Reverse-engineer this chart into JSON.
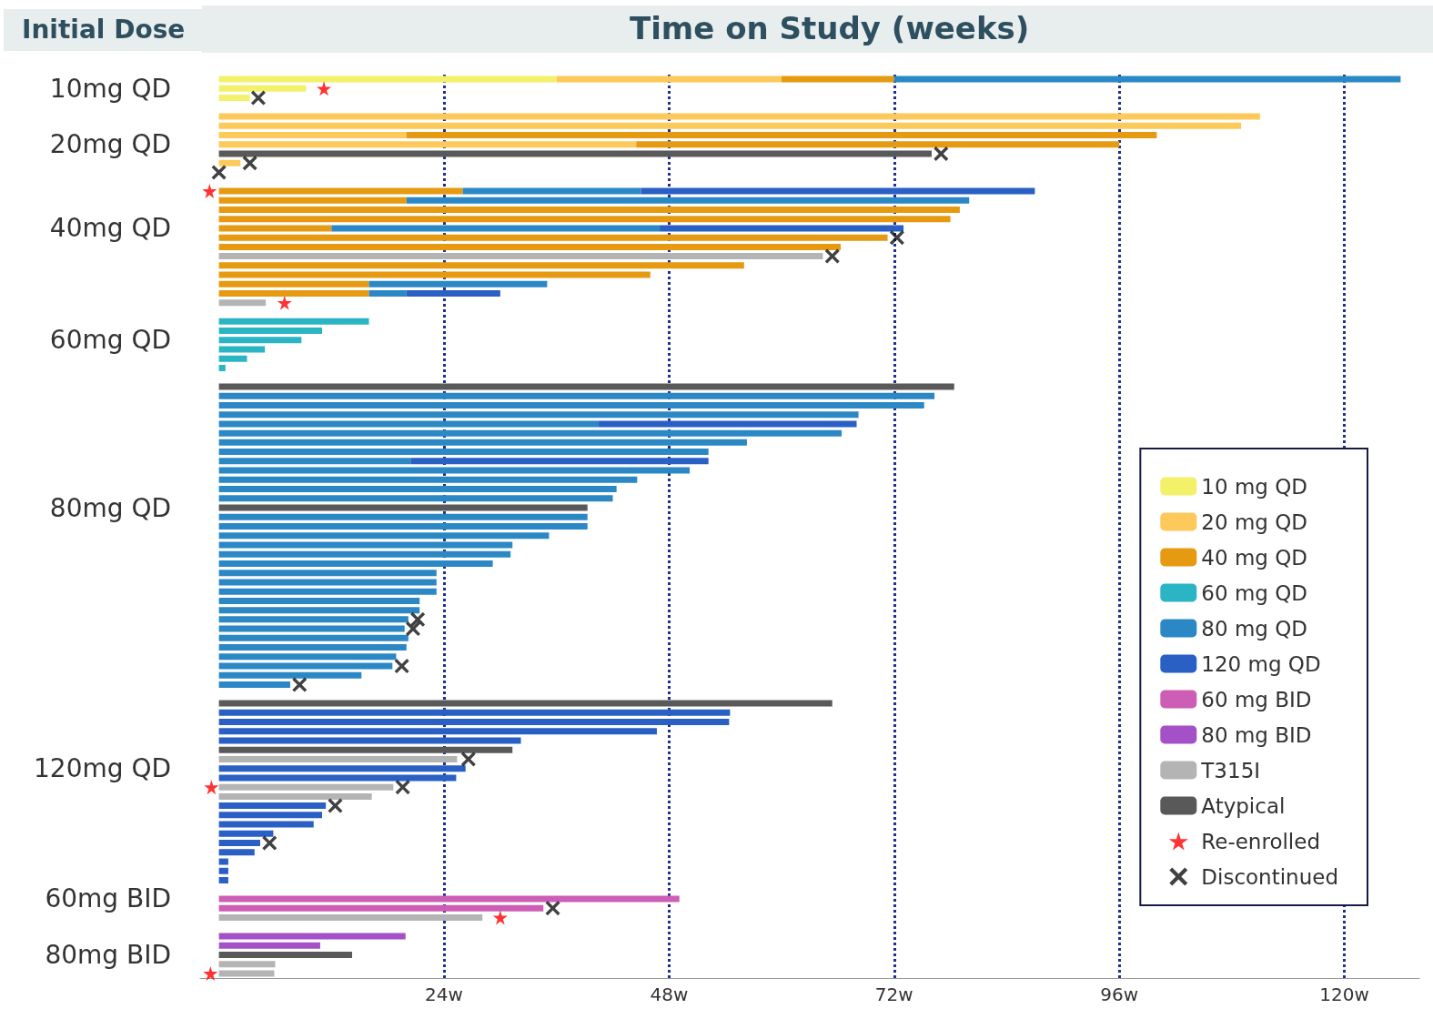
{
  "chart_data": {
    "type": "bar",
    "orientation": "horizontal",
    "stacked": true,
    "title": "Time on Study (weeks)",
    "ylabel": "Initial Dose",
    "grid": "x",
    "legend": "bottom right",
    "xlim": [
      -2,
      128
    ],
    "xticks": [
      {
        "value": 24,
        "label": "24w"
      },
      {
        "value": 48,
        "label": "48w"
      },
      {
        "value": 72,
        "label": "72w"
      },
      {
        "value": 96,
        "label": "96w"
      },
      {
        "value": 120,
        "label": "120w"
      }
    ],
    "categories": [
      null,
      "10mg QD",
      null,
      null,
      null,
      null,
      null,
      "20mg QD",
      null,
      null,
      null,
      null,
      null,
      null,
      null,
      null,
      "40mg QD",
      null,
      null,
      null,
      null,
      null,
      null,
      null,
      null,
      null,
      null,
      null,
      "60mg QD",
      null,
      null,
      null,
      null,
      null,
      null,
      null,
      null,
      null,
      null,
      null,
      null,
      null,
      null,
      null,
      null,
      null,
      "80mg QD",
      null,
      null,
      null,
      null,
      null,
      null,
      null,
      null,
      null,
      null,
      null,
      null,
      null,
      null,
      null,
      null,
      null,
      null,
      null,
      null,
      null,
      null,
      null,
      null,
      null,
      null,
      null,
      "120mg QD",
      null,
      null,
      null,
      null,
      null,
      null,
      null,
      null,
      null,
      null,
      null,
      null,
      null,
      "60mg BID",
      null,
      null,
      null,
      null,
      null,
      "80mg BID",
      null,
      null
    ],
    "series": [
      {
        "name": "10 mg QD",
        "color": "#f3f06a",
        "values": [
          36,
          9.3,
          3.3,
          null,
          null,
          null,
          null,
          null,
          null,
          null,
          null,
          null,
          null,
          null,
          null,
          null,
          null,
          null,
          null,
          null,
          null,
          null,
          null,
          null,
          null,
          null,
          null,
          null,
          null,
          null,
          null,
          null,
          null,
          null,
          null,
          null,
          null,
          null,
          null,
          null,
          null,
          null,
          null,
          null,
          null,
          null,
          null,
          null,
          null,
          null,
          null,
          null,
          null,
          null,
          null,
          null,
          null,
          null,
          null,
          null,
          null,
          null,
          null,
          null,
          null,
          null,
          null,
          null,
          null,
          null,
          null,
          null,
          null,
          null,
          null,
          null,
          null,
          null,
          null,
          null,
          null,
          null,
          null,
          null,
          null,
          null,
          null,
          null,
          null,
          null,
          null,
          null,
          null,
          null,
          null,
          null,
          null
        ]
      },
      {
        "name": "20 mg QD",
        "color": "#fdc95a",
        "values": [
          24,
          null,
          null,
          null,
          111,
          109,
          20,
          44.5,
          null,
          2.3,
          null,
          null,
          null,
          null,
          null,
          null,
          null,
          null,
          null,
          null,
          null,
          null,
          null,
          null,
          null,
          null,
          null,
          null,
          null,
          null,
          null,
          null,
          null,
          null,
          null,
          null,
          null,
          null,
          null,
          null,
          null,
          null,
          null,
          null,
          null,
          null,
          null,
          null,
          null,
          null,
          null,
          null,
          null,
          null,
          null,
          null,
          null,
          null,
          null,
          null,
          null,
          null,
          null,
          null,
          null,
          null,
          null,
          null,
          null,
          null,
          null,
          null,
          null,
          null,
          null,
          null,
          null,
          null,
          null,
          null,
          null,
          null,
          null,
          null,
          null,
          null,
          null,
          null,
          null,
          null,
          null,
          null,
          null,
          null,
          null,
          null,
          null
        ]
      },
      {
        "name": "40 mg QD",
        "color": "#e59a12",
        "values": [
          12,
          null,
          null,
          null,
          null,
          null,
          80,
          51.5,
          null,
          null,
          null,
          null,
          26,
          20,
          79,
          78,
          12,
          71.3,
          66.3,
          null,
          56,
          46,
          16,
          16,
          null,
          null,
          null,
          null,
          null,
          null,
          null,
          null,
          null,
          null,
          null,
          null,
          null,
          null,
          null,
          null,
          null,
          null,
          null,
          null,
          null,
          null,
          null,
          null,
          null,
          null,
          null,
          null,
          null,
          null,
          null,
          null,
          null,
          null,
          null,
          null,
          null,
          null,
          null,
          null,
          null,
          null,
          null,
          null,
          null,
          null,
          null,
          null,
          null,
          null,
          null,
          null,
          null,
          null,
          null,
          null,
          null,
          null,
          null,
          null,
          null,
          null,
          null,
          null,
          null,
          null,
          null,
          null,
          null,
          null,
          null,
          null,
          null
        ]
      },
      {
        "name": "60 mg QD",
        "color": "#2bb5c4",
        "values": [
          null,
          null,
          null,
          null,
          null,
          null,
          null,
          null,
          null,
          null,
          null,
          null,
          null,
          null,
          null,
          null,
          null,
          null,
          null,
          null,
          null,
          null,
          null,
          null,
          null,
          null,
          16,
          11,
          8.8,
          4.9,
          3,
          0.7,
          null,
          null,
          null,
          null,
          null,
          null,
          null,
          null,
          null,
          null,
          null,
          null,
          null,
          null,
          null,
          null,
          null,
          null,
          null,
          null,
          null,
          null,
          null,
          null,
          null,
          null,
          null,
          null,
          null,
          null,
          null,
          null,
          null,
          null,
          null,
          null,
          null,
          null,
          null,
          null,
          null,
          null,
          null,
          null,
          null,
          null,
          null,
          null,
          null,
          null,
          null,
          null,
          null,
          null,
          null,
          null,
          null,
          null,
          null,
          null,
          null,
          null,
          null,
          null,
          null
        ]
      },
      {
        "name": "80 mg QD",
        "color": "#2b88c4",
        "values": [
          54,
          null,
          null,
          null,
          null,
          null,
          null,
          null,
          null,
          null,
          null,
          null,
          19,
          60,
          null,
          null,
          35,
          null,
          null,
          null,
          null,
          null,
          19,
          4,
          null,
          null,
          null,
          null,
          null,
          null,
          null,
          null,
          null,
          null,
          76.3,
          75.2,
          68.2,
          40.5,
          66.4,
          56.3,
          52.2,
          20.5,
          50.2,
          44.6,
          42.4,
          42,
          null,
          39.3,
          39.3,
          35.2,
          31.3,
          31.1,
          29.2,
          23.2,
          23.2,
          23.2,
          21.4,
          21.4,
          20.2,
          19.8,
          20.2,
          20,
          18.9,
          18.5,
          15.2,
          7.6,
          null,
          null,
          null,
          null,
          null,
          null,
          null,
          null,
          null,
          null,
          null,
          null,
          null,
          null,
          null,
          null,
          null,
          null,
          null,
          null,
          null,
          null,
          null,
          null,
          null,
          null,
          null,
          null,
          null,
          null,
          null
        ]
      },
      {
        "name": "120 mg QD",
        "color": "#2a5fc4",
        "values": [
          null,
          null,
          null,
          null,
          null,
          null,
          null,
          null,
          null,
          null,
          null,
          null,
          42,
          null,
          null,
          null,
          26,
          null,
          null,
          null,
          null,
          null,
          null,
          10,
          null,
          null,
          null,
          null,
          null,
          null,
          null,
          null,
          null,
          null,
          null,
          null,
          null,
          27.5,
          null,
          null,
          null,
          31.7,
          null,
          null,
          null,
          null,
          null,
          null,
          null,
          null,
          null,
          null,
          null,
          null,
          null,
          null,
          null,
          null,
          null,
          null,
          null,
          null,
          null,
          null,
          null,
          null,
          null,
          null,
          54.5,
          54.4,
          46.7,
          32.2,
          null,
          null,
          26.3,
          25.3,
          null,
          null,
          11.4,
          11,
          10.1,
          5.8,
          4.4,
          3.8,
          1,
          1,
          1,
          null,
          null,
          null,
          null,
          null,
          null,
          null,
          null,
          null,
          null
        ]
      },
      {
        "name": "60 mg BID",
        "color": "#cc5eb5",
        "values": [
          null,
          null,
          null,
          null,
          null,
          null,
          null,
          null,
          null,
          null,
          null,
          null,
          null,
          null,
          null,
          null,
          null,
          null,
          null,
          null,
          null,
          null,
          null,
          null,
          null,
          null,
          null,
          null,
          null,
          null,
          null,
          null,
          null,
          null,
          null,
          null,
          null,
          null,
          null,
          null,
          null,
          null,
          null,
          null,
          null,
          null,
          null,
          null,
          null,
          null,
          null,
          null,
          null,
          null,
          null,
          null,
          null,
          null,
          null,
          null,
          null,
          null,
          null,
          null,
          null,
          null,
          null,
          null,
          null,
          null,
          null,
          null,
          null,
          null,
          null,
          null,
          null,
          null,
          null,
          null,
          null,
          null,
          null,
          null,
          null,
          null,
          null,
          null,
          49.1,
          34.6,
          null,
          null,
          null,
          null,
          null,
          null,
          null
        ]
      },
      {
        "name": "80 mg BID",
        "color": "#a451c8",
        "values": [
          null,
          null,
          null,
          null,
          null,
          null,
          null,
          null,
          null,
          null,
          null,
          null,
          null,
          null,
          null,
          null,
          null,
          null,
          null,
          null,
          null,
          null,
          null,
          null,
          null,
          null,
          null,
          null,
          null,
          null,
          null,
          null,
          null,
          null,
          null,
          null,
          null,
          null,
          null,
          null,
          null,
          null,
          null,
          null,
          null,
          null,
          null,
          null,
          null,
          null,
          null,
          null,
          null,
          null,
          null,
          null,
          null,
          null,
          null,
          null,
          null,
          null,
          null,
          null,
          null,
          null,
          null,
          null,
          null,
          null,
          null,
          null,
          null,
          null,
          null,
          null,
          null,
          null,
          null,
          null,
          null,
          null,
          null,
          null,
          null,
          null,
          null,
          null,
          null,
          null,
          null,
          null,
          19.9,
          10.8,
          null,
          null,
          null
        ]
      },
      {
        "name": "T315I",
        "color": "#b4b4b4",
        "values": [
          null,
          null,
          null,
          null,
          null,
          null,
          null,
          null,
          null,
          null,
          null,
          null,
          null,
          null,
          null,
          null,
          null,
          null,
          null,
          64.4,
          null,
          null,
          null,
          null,
          5,
          null,
          null,
          null,
          null,
          null,
          null,
          null,
          null,
          null,
          null,
          null,
          null,
          null,
          null,
          null,
          null,
          null,
          null,
          null,
          null,
          null,
          null,
          null,
          null,
          null,
          null,
          null,
          null,
          null,
          null,
          null,
          null,
          null,
          null,
          null,
          null,
          null,
          null,
          null,
          null,
          null,
          null,
          null,
          null,
          null,
          null,
          null,
          null,
          25.4,
          null,
          null,
          18.6,
          16.3,
          null,
          null,
          null,
          null,
          null,
          null,
          null,
          null,
          null,
          null,
          null,
          null,
          28.1,
          null,
          null,
          null,
          null,
          6,
          5.9
        ]
      },
      {
        "name": "Atypical",
        "color": "#595959",
        "values": [
          null,
          null,
          null,
          null,
          null,
          null,
          null,
          null,
          76,
          null,
          null,
          null,
          null,
          null,
          null,
          null,
          null,
          null,
          null,
          null,
          null,
          null,
          null,
          null,
          null,
          null,
          null,
          null,
          null,
          null,
          null,
          null,
          null,
          78.4,
          null,
          null,
          null,
          null,
          null,
          null,
          null,
          null,
          null,
          null,
          null,
          null,
          39.3,
          null,
          null,
          null,
          null,
          null,
          null,
          null,
          null,
          null,
          null,
          null,
          null,
          null,
          null,
          null,
          null,
          null,
          null,
          null,
          null,
          65.4,
          null,
          null,
          null,
          null,
          31.3,
          null,
          null,
          null,
          null,
          null,
          null,
          null,
          null,
          null,
          null,
          null,
          null,
          null,
          null,
          null,
          null,
          null,
          null,
          null,
          null,
          null,
          14.2,
          null,
          null
        ]
      },
      {
        "name": "Re-enrolled",
        "type": "scatter",
        "marker": "star",
        "color": "#ff0000",
        "values": [
          null,
          11.2,
          null,
          null,
          null,
          null,
          null,
          null,
          null,
          null,
          null,
          null,
          -1,
          null,
          null,
          null,
          null,
          null,
          null,
          null,
          null,
          null,
          null,
          null,
          7,
          null,
          null,
          null,
          null,
          null,
          null,
          null,
          null,
          null,
          null,
          null,
          null,
          null,
          null,
          null,
          null,
          null,
          null,
          null,
          null,
          null,
          null,
          null,
          null,
          null,
          null,
          null,
          null,
          null,
          null,
          null,
          null,
          null,
          null,
          null,
          null,
          null,
          null,
          null,
          null,
          null,
          null,
          null,
          null,
          null,
          null,
          null,
          null,
          null,
          null,
          null,
          -0.8,
          null,
          null,
          null,
          null,
          null,
          null,
          null,
          null,
          null,
          null,
          null,
          null,
          null,
          30,
          null,
          null,
          null,
          null,
          null,
          -0.9
        ]
      },
      {
        "name": "Discontinued",
        "type": "scatter",
        "marker": "cross",
        "color": "#111111",
        "values": [
          null,
          null,
          4.2,
          null,
          null,
          null,
          null,
          null,
          77,
          3.3,
          0,
          null,
          null,
          null,
          null,
          null,
          null,
          72.3,
          null,
          65.4,
          null,
          null,
          null,
          null,
          null,
          null,
          null,
          null,
          null,
          null,
          null,
          null,
          null,
          null,
          null,
          null,
          null,
          null,
          null,
          null,
          null,
          null,
          null,
          null,
          null,
          null,
          null,
          null,
          null,
          null,
          null,
          null,
          null,
          null,
          null,
          null,
          null,
          null,
          21.2,
          20.7,
          null,
          null,
          null,
          19.5,
          null,
          8.6,
          null,
          null,
          null,
          null,
          null,
          null,
          null,
          26.6,
          null,
          null,
          19.6,
          null,
          12.4,
          null,
          null,
          null,
          5.4,
          null,
          null,
          null,
          null,
          null,
          null,
          35.6,
          null,
          null,
          null,
          null,
          null,
          null,
          null
        ]
      }
    ]
  }
}
